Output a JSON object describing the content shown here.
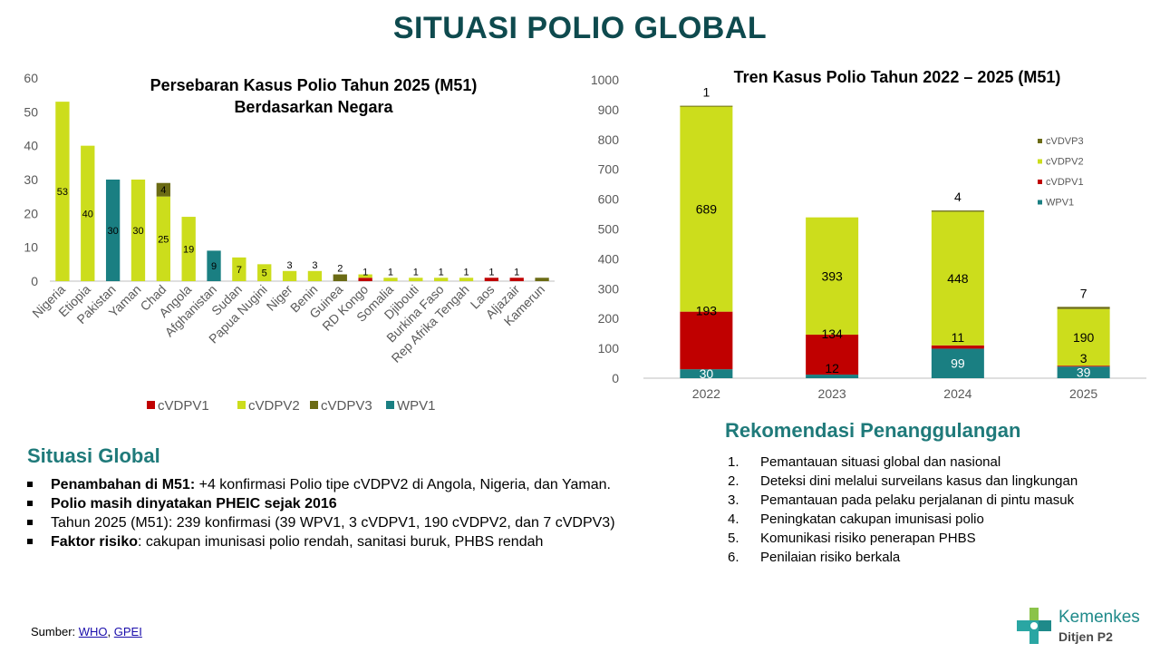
{
  "page_title": "SITUASI POLIO GLOBAL",
  "colors": {
    "cVDPV1": "#c00000",
    "cVDPV2": "#ccdd1c",
    "cVDPV3": "#6b6b14",
    "WPV1": "#1a7f82"
  },
  "chart_data": [
    {
      "type": "bar",
      "stacked": true,
      "title": "Persebaran Kasus Polio Tahun 2025 (M51)",
      "subtitle": "Berdasarkan Negara",
      "categories": [
        "Nigeria",
        "Etiopia",
        "Pakistan",
        "Yaman",
        "Chad",
        "Angola",
        "Afghanistan",
        "Sudan",
        "Papua Nugini",
        "Niger",
        "Benin",
        "Guinea",
        "RD Kongo",
        "Somalia",
        "Djibouti",
        "Burkina Faso",
        "Rep Afrika Tengah",
        "Laos",
        "Aljazair",
        "Kamerun"
      ],
      "series": [
        {
          "name": "cVDPV1",
          "values": [
            0,
            0,
            0,
            0,
            0,
            0,
            0,
            0,
            0,
            0,
            0,
            0,
            1,
            0,
            0,
            0,
            0,
            1,
            1,
            0
          ]
        },
        {
          "name": "cVDPV2",
          "values": [
            53,
            40,
            0,
            30,
            25,
            19,
            0,
            7,
            5,
            3,
            3,
            0,
            1,
            1,
            1,
            1,
            1,
            0,
            0,
            0
          ]
        },
        {
          "name": "cVDPV3",
          "values": [
            0,
            0,
            0,
            0,
            4,
            0,
            0,
            0,
            0,
            0,
            0,
            2,
            0,
            0,
            0,
            0,
            0,
            0,
            0,
            1
          ]
        },
        {
          "name": "WPV1",
          "values": [
            0,
            0,
            30,
            0,
            0,
            0,
            9,
            0,
            0,
            0,
            0,
            0,
            0,
            0,
            0,
            0,
            0,
            0,
            0,
            0
          ]
        }
      ],
      "labels": [
        {
          "cat": 0,
          "text": "53"
        },
        {
          "cat": 1,
          "text": "40"
        },
        {
          "cat": 2,
          "text": "30"
        },
        {
          "cat": 3,
          "text": "30"
        },
        {
          "cat": 4,
          "text": "25"
        },
        {
          "cat": 4,
          "text": "4"
        },
        {
          "cat": 5,
          "text": "19"
        },
        {
          "cat": 6,
          "text": "9"
        },
        {
          "cat": 7,
          "text": "7"
        },
        {
          "cat": 8,
          "text": "5"
        },
        {
          "cat": 9,
          "text": "3"
        },
        {
          "cat": 10,
          "text": "3"
        },
        {
          "cat": 11,
          "text": "2"
        },
        {
          "cat": 12,
          "text": "1"
        },
        {
          "cat": 13,
          "text": "1"
        },
        {
          "cat": 14,
          "text": "1"
        },
        {
          "cat": 15,
          "text": "1"
        },
        {
          "cat": 16,
          "text": "1"
        },
        {
          "cat": 17,
          "text": "1"
        },
        {
          "cat": 18,
          "text": "1"
        }
      ],
      "ylim": [
        0,
        60
      ],
      "yticks": [
        0,
        10,
        20,
        30,
        40,
        50,
        60
      ],
      "legend": {
        "placement": "bottom",
        "items": [
          "cVDPV1",
          "cVDPV2",
          "cVDPV3",
          "WPV1"
        ]
      }
    },
    {
      "type": "bar",
      "stacked": true,
      "title": "Tren Kasus Polio Tahun 2022 – 2025 (M51)",
      "categories": [
        "2022",
        "2023",
        "2024",
        "2025"
      ],
      "series": [
        {
          "name": "WPV1",
          "values": [
            30,
            12,
            99,
            39
          ]
        },
        {
          "name": "cVDPV1",
          "values": [
            193,
            134,
            11,
            3
          ]
        },
        {
          "name": "cVDPV2",
          "values": [
            689,
            393,
            448,
            190
          ]
        },
        {
          "name": "cVDPV3",
          "values": [
            1,
            0,
            4,
            7
          ]
        }
      ],
      "labels": [
        {
          "cat": 0,
          "series": "WPV1",
          "text": "30"
        },
        {
          "cat": 0,
          "series": "cVDPV1",
          "text": "193"
        },
        {
          "cat": 0,
          "series": "cVDPV2",
          "text": "689"
        },
        {
          "cat": 0,
          "series": "cVDPV3",
          "text": "1"
        },
        {
          "cat": 1,
          "series": "WPV1",
          "text": "12"
        },
        {
          "cat": 1,
          "series": "cVDPV1",
          "text": "134"
        },
        {
          "cat": 1,
          "series": "cVDPV2",
          "text": "393"
        },
        {
          "cat": 2,
          "series": "WPV1",
          "text": "99"
        },
        {
          "cat": 2,
          "series": "cVDPV1",
          "text": "11"
        },
        {
          "cat": 2,
          "series": "cVDPV2",
          "text": "448"
        },
        {
          "cat": 2,
          "series": "cVDPV3",
          "text": "4"
        },
        {
          "cat": 3,
          "series": "WPV1",
          "text": "39"
        },
        {
          "cat": 3,
          "series": "cVDPV1",
          "text": "3"
        },
        {
          "cat": 3,
          "series": "cVDPV2",
          "text": "190"
        },
        {
          "cat": 3,
          "series": "cVDPV3",
          "text": "7"
        }
      ],
      "ylim": [
        0,
        1000
      ],
      "yticks": [
        0,
        100,
        200,
        300,
        400,
        500,
        600,
        700,
        800,
        900,
        1000
      ],
      "legend": {
        "placement": "right",
        "items": [
          "cVDVP3",
          "cVDPV2",
          "cVDPV1",
          "WPV1"
        ]
      }
    }
  ],
  "situasi": {
    "title": "Situasi Global",
    "items": [
      {
        "bold": "Penambahan di M51:",
        "text": " +4 konfirmasi Polio tipe cVDPV2 di Angola, Nigeria, dan Yaman."
      },
      {
        "bold": "Polio masih dinyatakan PHEIC sejak 2016",
        "text": ""
      },
      {
        "bold": "",
        "text": "Tahun 2025 (M51): 239 konfirmasi (39 WPV1, 3 cVDPV1, 190 cVDPV2, dan 7 cVDPV3)"
      },
      {
        "bold": "Faktor risiko",
        "text": ": cakupan imunisasi polio rendah, sanitasi buruk, PHBS rendah"
      }
    ]
  },
  "rekomendasi": {
    "title": "Rekomendasi Penanggulangan",
    "items": [
      {
        "num": "1.",
        "text": "Pemantauan situasi global dan nasional"
      },
      {
        "num": "2.",
        "text": "Deteksi dini melalui surveilans kasus dan lingkungan"
      },
      {
        "num": "3.",
        "text": "Pemantauan pada pelaku perjalanan di pintu masuk"
      },
      {
        "num": "4.",
        "text": "Peningkatan cakupan imunisasi polio"
      },
      {
        "num": "5.",
        "text": "Komunikasi risiko penerapan PHBS"
      },
      {
        "num": "6.",
        "text": "Penilaian risiko berkala"
      }
    ]
  },
  "source": {
    "label": "Sumber: ",
    "links": [
      "WHO",
      "GPEI"
    ],
    "separator": ", "
  },
  "logo": {
    "name": "Kemenkes",
    "sub": "Ditjen P2"
  }
}
